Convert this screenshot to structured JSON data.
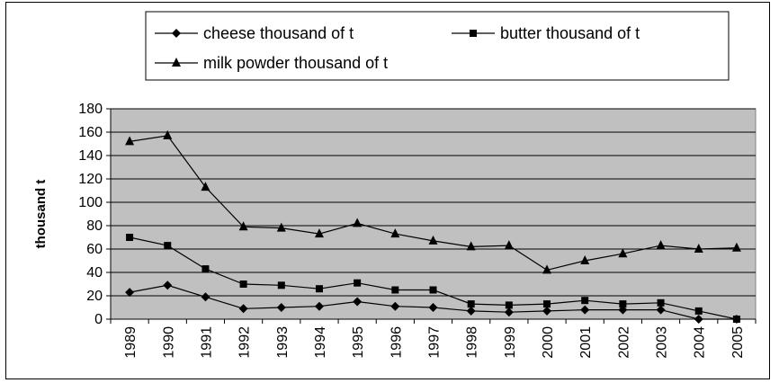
{
  "chart_data": {
    "type": "line",
    "xlabel": "",
    "ylabel": "thousand t",
    "ylim": [
      0,
      180
    ],
    "yticks": [
      0,
      20,
      40,
      60,
      80,
      100,
      120,
      140,
      160,
      180
    ],
    "categories": [
      "1989",
      "1990",
      "1991",
      "1992",
      "1993",
      "1994",
      "1995",
      "1996",
      "1997",
      "1998",
      "1999",
      "2000",
      "2001",
      "2002",
      "2003",
      "2004",
      "2005"
    ],
    "grid": "horizontal",
    "plot_background": "#c0c0c0",
    "legend_position": "top",
    "series": [
      {
        "name": "cheese thousand of t",
        "marker": "diamond",
        "color": "#000000",
        "values": [
          23,
          29,
          19,
          9,
          10,
          11,
          15,
          11,
          10,
          7,
          6,
          7,
          8,
          8,
          8,
          0,
          0
        ]
      },
      {
        "name": "butter thousand of t",
        "marker": "square",
        "color": "#000000",
        "values": [
          70,
          63,
          43,
          30,
          29,
          26,
          31,
          25,
          25,
          13,
          12,
          13,
          16,
          13,
          14,
          7,
          0
        ]
      },
      {
        "name": "milk powder thousand of t",
        "marker": "triangle",
        "color": "#000000",
        "values": [
          152,
          157,
          113,
          79,
          78,
          73,
          82,
          73,
          67,
          62,
          63,
          42,
          50,
          56,
          63,
          60,
          61
        ]
      }
    ]
  }
}
